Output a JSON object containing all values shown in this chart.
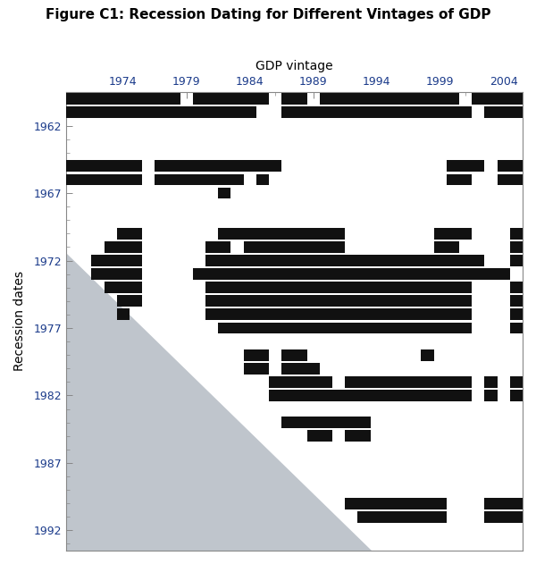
{
  "title": "Figure C1: Recession Dating for Different Vintages of GDP",
  "xlabel": "GDP vintage",
  "ylabel": "Recession dates",
  "x_ticks": [
    1974,
    1979,
    1984,
    1989,
    1994,
    1999,
    2004
  ],
  "y_ticks": [
    1962,
    1967,
    1972,
    1977,
    1982,
    1987,
    1992
  ],
  "background_color": "#ffffff",
  "triangle_color": "#bfc5cc",
  "bar_color": "#111111",
  "tick_color": "#1a3a8a",
  "recession_cells": [
    [
      1960,
      [
        1970,
        1971,
        1972,
        1973,
        1974,
        1975,
        1976,
        1977,
        1978,
        1980,
        1981,
        1982,
        1983,
        1984,
        1985,
        1987,
        1988,
        1990,
        1991,
        1992,
        1993,
        1994,
        1995,
        1996,
        1997,
        1998,
        1999,
        2000,
        2002,
        2003,
        2004,
        2005
      ]
    ],
    [
      1961,
      [
        1970,
        1971,
        1972,
        1973,
        1974,
        1975,
        1976,
        1977,
        1978,
        1979,
        1980,
        1981,
        1982,
        1983,
        1984,
        1987,
        1988,
        1989,
        1990,
        1991,
        1992,
        1993,
        1994,
        1995,
        1996,
        1997,
        1998,
        1999,
        2000,
        2001,
        2003,
        2004,
        2005
      ]
    ],
    [
      1965,
      [
        1970,
        1971,
        1972,
        1973,
        1974,
        1975,
        1977,
        1978,
        1979,
        1980,
        1981,
        1982,
        1983,
        1984,
        1985,
        1986,
        2000,
        2001,
        2002,
        2004,
        2005
      ]
    ],
    [
      1966,
      [
        1970,
        1971,
        1972,
        1973,
        1974,
        1975,
        1977,
        1978,
        1979,
        1980,
        1981,
        1982,
        1983,
        1985,
        2000,
        2001,
        2004,
        2005
      ]
    ],
    [
      1967,
      [
        1982
      ]
    ],
    [
      1970,
      [
        1974,
        1975,
        1982,
        1983,
        1984,
        1985,
        1986,
        1987,
        1988,
        1989,
        1990,
        1991,
        1999,
        2000,
        2001,
        2005
      ]
    ],
    [
      1971,
      [
        1973,
        1974,
        1975,
        1981,
        1982,
        1984,
        1985,
        1986,
        1987,
        1988,
        1989,
        1990,
        1991,
        1999,
        2000,
        2005
      ]
    ],
    [
      1972,
      [
        1972,
        1973,
        1974,
        1975,
        1981,
        1982,
        1983,
        1984,
        1985,
        1986,
        1987,
        1988,
        1989,
        1990,
        1991,
        1992,
        1993,
        1994,
        1995,
        1996,
        1997,
        1998,
        1999,
        2000,
        2001,
        2002,
        2005
      ]
    ],
    [
      1973,
      [
        1972,
        1973,
        1974,
        1975,
        1980,
        1981,
        1982,
        1983,
        1984,
        1985,
        1986,
        1987,
        1988,
        1989,
        1990,
        1991,
        1992,
        1993,
        1994,
        1995,
        1996,
        1997,
        1998,
        1999,
        2000,
        2001,
        2002,
        2003,
        2004
      ]
    ],
    [
      1974,
      [
        1973,
        1974,
        1975,
        1981,
        1982,
        1983,
        1984,
        1985,
        1986,
        1987,
        1988,
        1989,
        1990,
        1991,
        1992,
        1993,
        1994,
        1995,
        1996,
        1997,
        1998,
        1999,
        2000,
        2001,
        2005
      ]
    ],
    [
      1975,
      [
        1974,
        1975,
        1981,
        1982,
        1983,
        1984,
        1985,
        1986,
        1987,
        1988,
        1989,
        1990,
        1991,
        1992,
        1993,
        1994,
        1995,
        1996,
        1997,
        1998,
        1999,
        2000,
        2001,
        2005
      ]
    ],
    [
      1976,
      [
        1974,
        1981,
        1982,
        1983,
        1984,
        1985,
        1986,
        1987,
        1988,
        1989,
        1990,
        1991,
        1992,
        1993,
        1994,
        1995,
        1996,
        1997,
        1998,
        1999,
        2000,
        2001,
        2005
      ]
    ],
    [
      1977,
      [
        1982,
        1983,
        1984,
        1985,
        1986,
        1987,
        1988,
        1989,
        1990,
        1991,
        1992,
        1993,
        1994,
        1995,
        1996,
        1997,
        1998,
        1999,
        2000,
        2001,
        2005
      ]
    ],
    [
      1979,
      [
        1984,
        1985,
        1987,
        1988,
        1998
      ]
    ],
    [
      1980,
      [
        1984,
        1985,
        1987,
        1988,
        1989
      ]
    ],
    [
      1981,
      [
        1986,
        1987,
        1988,
        1989,
        1990,
        1992,
        1993,
        1994,
        1995,
        1996,
        1997,
        1998,
        1999,
        2000,
        2001,
        2003,
        2005
      ]
    ],
    [
      1982,
      [
        1986,
        1987,
        1988,
        1989,
        1990,
        1991,
        1992,
        1993,
        1994,
        1995,
        1996,
        1997,
        1998,
        1999,
        2000,
        2001,
        2003,
        2005
      ]
    ],
    [
      1984,
      [
        1987,
        1988,
        1989,
        1990,
        1991,
        1992,
        1993
      ]
    ],
    [
      1985,
      [
        1989,
        1990,
        1992,
        1993
      ]
    ],
    [
      1990,
      [
        1992,
        1993,
        1994,
        1995,
        1996,
        1997,
        1998,
        1999,
        2003,
        2004,
        2005
      ]
    ],
    [
      1991,
      [
        1993,
        1994,
        1995,
        1996,
        1997,
        1998,
        1999,
        2003,
        2004,
        2005
      ]
    ]
  ]
}
